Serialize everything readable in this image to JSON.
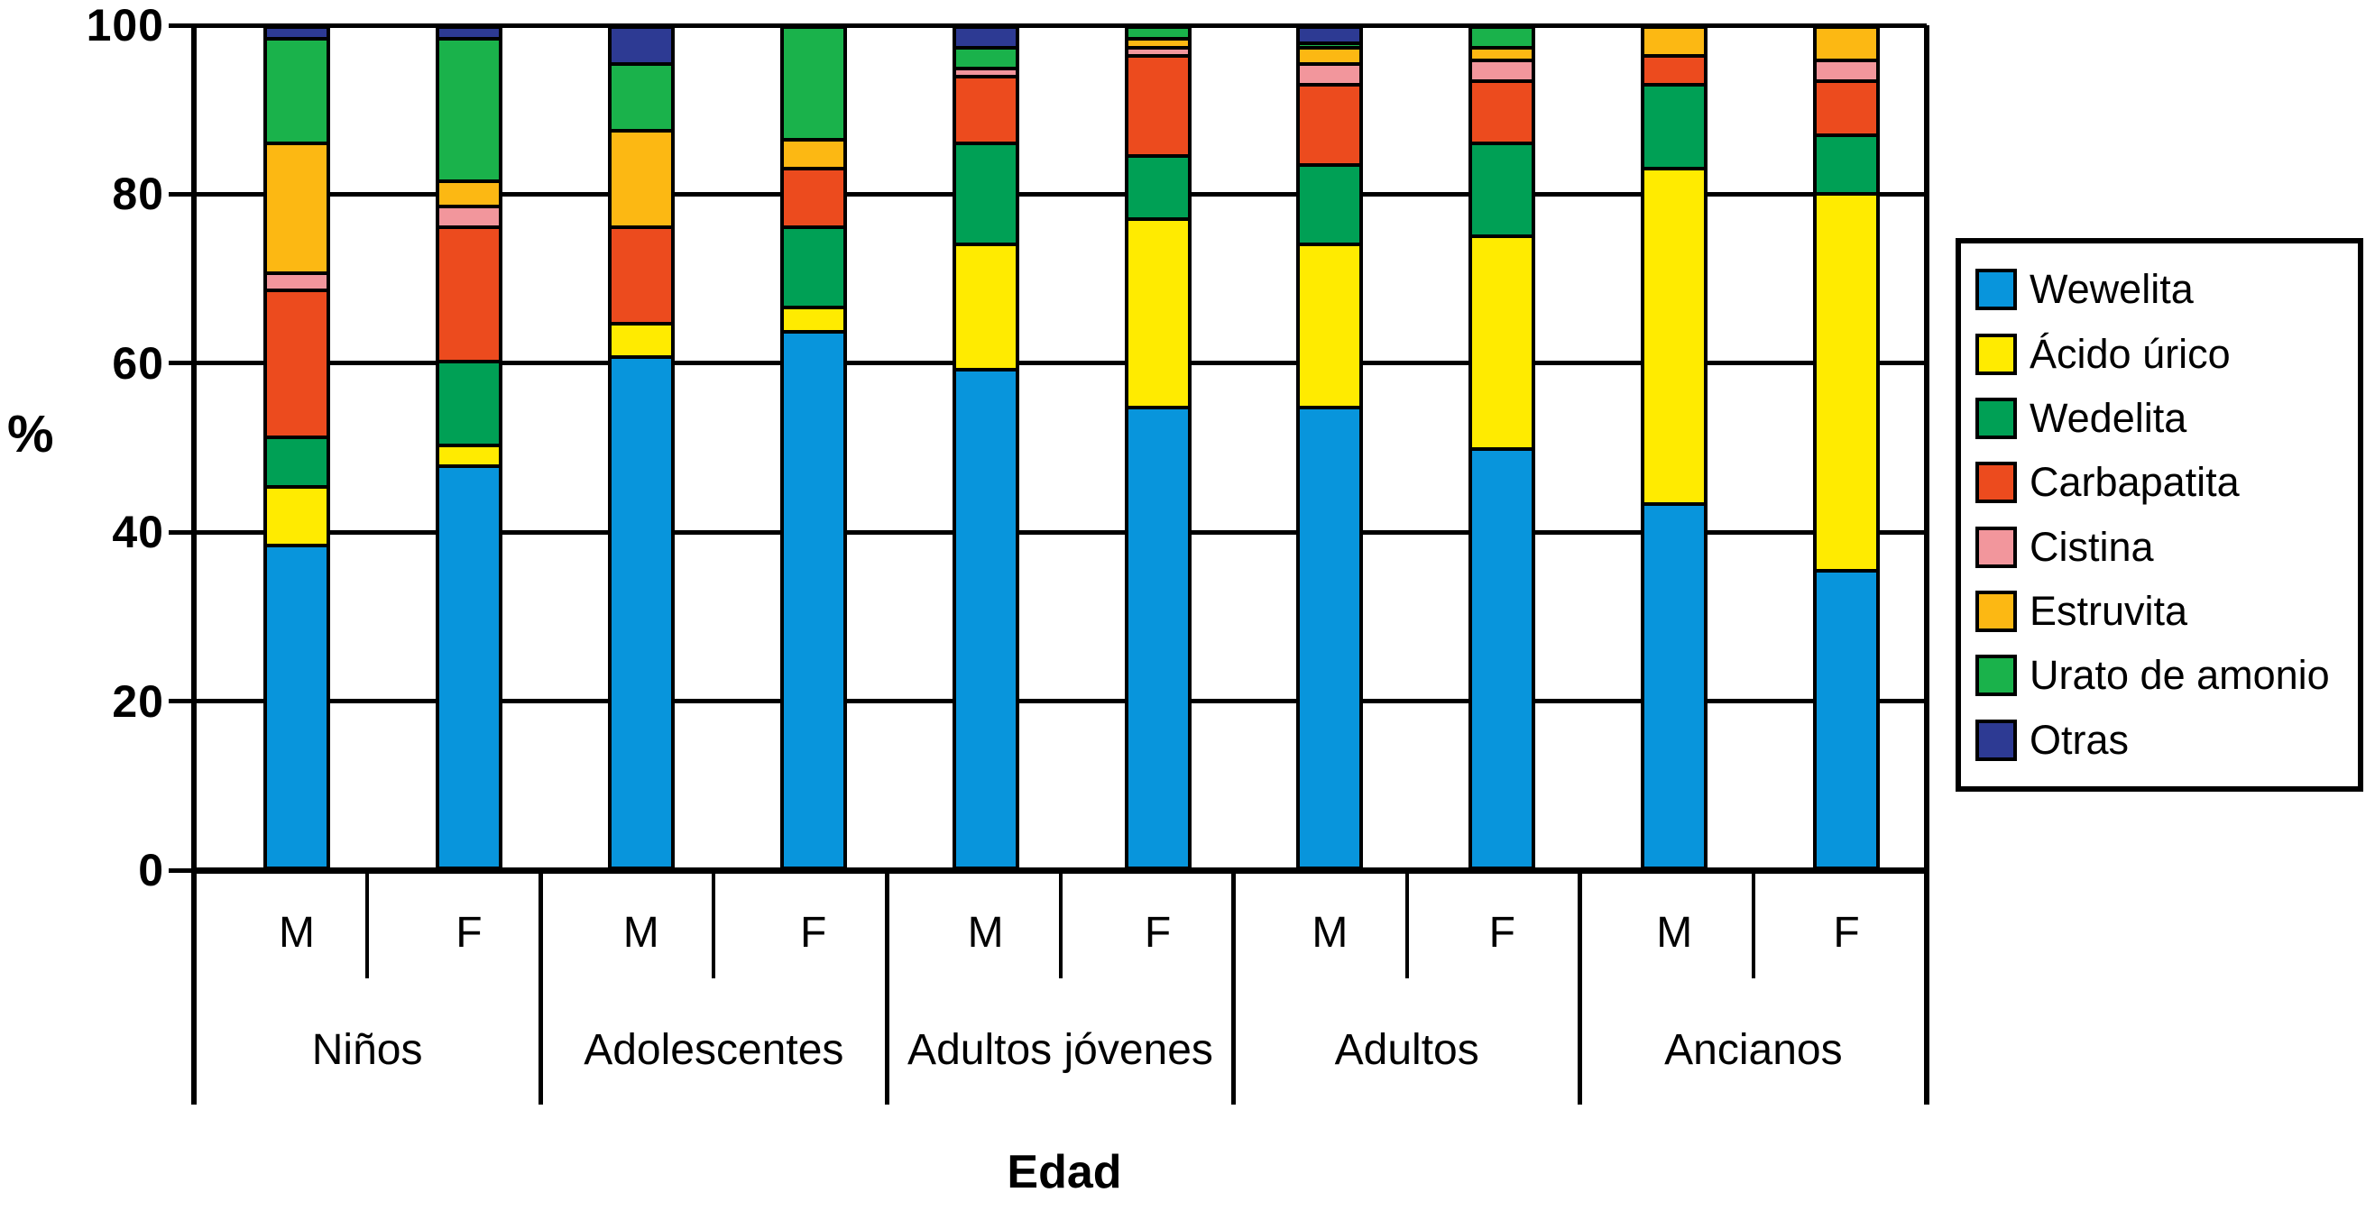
{
  "chart_data": {
    "type": "bar",
    "subtype": "stacked-100-percent",
    "title": "",
    "ylabel": "%",
    "xlabel": "Edad",
    "ylim": [
      0,
      100
    ],
    "y_ticks": [
      0,
      20,
      40,
      60,
      80,
      100
    ],
    "grid": "horizontal",
    "legend_position": "right",
    "groups": [
      "Niños",
      "Adolescentes",
      "Adultos jóvenes",
      "Adultos",
      "Ancianos"
    ],
    "sex_labels": [
      "M",
      "F"
    ],
    "bar_labels": [
      "M",
      "F",
      "M",
      "F",
      "M",
      "F",
      "M",
      "F",
      "M",
      "F"
    ],
    "series": [
      {
        "name": "Wewelita",
        "color": "#0895DC",
        "values": [
          38.5,
          48,
          61,
          64,
          59.5,
          55,
          55,
          50,
          43.5,
          35.5
        ]
      },
      {
        "name": "Ácido úrico",
        "color": "#FFEB00",
        "values": [
          7,
          2.5,
          4,
          3,
          15,
          22.5,
          19.5,
          25.5,
          40,
          45
        ]
      },
      {
        "name": "Wedelita",
        "color": "#00A055",
        "values": [
          6,
          10,
          0,
          9.5,
          12,
          7.5,
          9.5,
          11,
          10,
          7
        ]
      },
      {
        "name": "Carbapatita",
        "color": "#EC4B1E",
        "values": [
          17.5,
          16,
          11.5,
          7,
          8,
          12,
          9.5,
          7.5,
          3.5,
          6.5
        ]
      },
      {
        "name": "Cistina",
        "color": "#F2969C",
        "values": [
          2,
          2.5,
          0,
          0,
          1,
          1,
          2.5,
          2.5,
          0,
          2.5
        ]
      },
      {
        "name": "Estruvita",
        "color": "#FCB813",
        "values": [
          15.5,
          3,
          11.5,
          3.5,
          0,
          1,
          2,
          1.5,
          3,
          3.5
        ]
      },
      {
        "name": "Urato de amonio",
        "color": "#1AB24B",
        "values": [
          12.5,
          17,
          8,
          13,
          2.5,
          1,
          0.5,
          2,
          0,
          0
        ]
      },
      {
        "name": "Otras",
        "color": "#2D3A93",
        "values": [
          1,
          1,
          4,
          0,
          2,
          0,
          1.5,
          0,
          0,
          0
        ]
      }
    ]
  },
  "legend": {
    "items": [
      "Wewelita",
      "Ácido úrico",
      "Wedelita",
      "Carbapatita",
      "Cistina",
      "Estruvita",
      "Urato de amonio",
      "Otras"
    ]
  }
}
